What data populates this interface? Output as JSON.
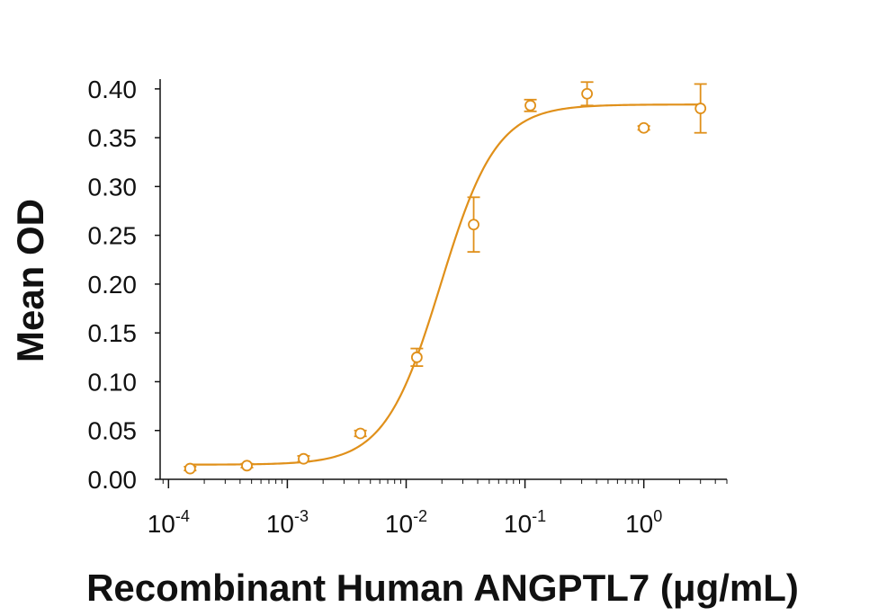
{
  "chart_data": {
    "type": "scatter",
    "x_scale": "log",
    "xlabel": "Recombinant Human ANGPTL7 (μg/mL)",
    "ylabel": "Mean OD",
    "xlim": [
      8.5e-05,
      5.0
    ],
    "ylim": [
      0.0,
      0.41
    ],
    "x_ticks": [
      {
        "base": "10",
        "exp": "-4"
      },
      {
        "base": "10",
        "exp": "-3"
      },
      {
        "base": "10",
        "exp": "-2"
      },
      {
        "base": "10",
        "exp": "-1"
      },
      {
        "base": "10",
        "exp": "0"
      }
    ],
    "y_ticks": [
      "0.00",
      "0.05",
      "0.10",
      "0.15",
      "0.20",
      "0.25",
      "0.30",
      "0.35",
      "0.40"
    ],
    "color": "#e0901a",
    "series": [
      {
        "x": [
          0.000152,
          0.000457,
          0.00137,
          0.00412,
          0.0123,
          0.037,
          0.111,
          0.333,
          1.0,
          3.0
        ],
        "y": [
          0.011,
          0.014,
          0.021,
          0.047,
          0.125,
          0.261,
          0.383,
          0.395,
          0.36,
          0.38
        ],
        "err": [
          0.002,
          0.002,
          0.003,
          0.003,
          0.009,
          0.028,
          0.006,
          0.012,
          0.002,
          0.025
        ]
      }
    ],
    "fit": {
      "model": "4PL",
      "bottom": 0.015,
      "top": 0.384,
      "ec50": 0.0195,
      "hill": 1.85
    }
  }
}
